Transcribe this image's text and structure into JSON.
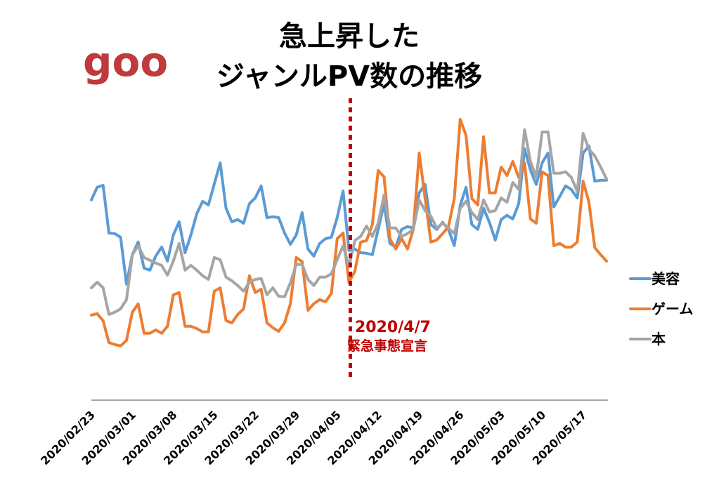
{
  "logo": {
    "text": "goo"
  },
  "chart_data": {
    "type": "line",
    "title": [
      "急上昇した",
      "ジャンルPV数の推移"
    ],
    "xlabel": "",
    "ylabel": "",
    "y_unit": "relative PV index (no axis shown)",
    "ylim": [
      0,
      110
    ],
    "grid": false,
    "legend_position": "right",
    "start_date": "2020/02/23",
    "tick_labels": [
      "2020/02/23",
      "2020/03/01",
      "2020/03/08",
      "2020/03/15",
      "2020/03/22",
      "2020/03/29",
      "2020/04/05",
      "2020/04/12",
      "2020/04/19",
      "2020/04/26",
      "2020/05/03",
      "2020/05/10",
      "2020/05/17"
    ],
    "tick_day_step": 7,
    "series": [
      {
        "name": "美容",
        "color": "#5b9bd5",
        "values": [
          71.3,
          75.8,
          76.5,
          59.5,
          59.3,
          58,
          41.3,
          51.8,
          56.3,
          47,
          46.3,
          51.3,
          54.5,
          49.5,
          58.8,
          63.5,
          52.5,
          58.8,
          66.3,
          70.8,
          69.5,
          77,
          84.5,
          68.3,
          63.5,
          64.3,
          63,
          70,
          72,
          76.3,
          65,
          65.3,
          65,
          59.5,
          55.5,
          58.8,
          66.8,
          53.8,
          51.3,
          55.8,
          57.5,
          58,
          65,
          74.5,
          53.3,
          53.8,
          52.5,
          52.3,
          51.8,
          60.8,
          70,
          55.8,
          54.5,
          60.8,
          61.8,
          61.3,
          73.8,
          76.8,
          62.5,
          60.8,
          63.3,
          60.8,
          55,
          69.3,
          75.8,
          62.5,
          60.8,
          68.3,
          63.3,
          57,
          64.3,
          65.8,
          64.5,
          70,
          89.5,
          82,
          76.8,
          84.5,
          88,
          68.8,
          72.5,
          76.3,
          75,
          72,
          88,
          90.5,
          78,
          78.3,
          78.3
        ]
      },
      {
        "name": "ゲーム",
        "color": "#ed7d31",
        "values": [
          30.3,
          30.8,
          28.3,
          20.5,
          19.8,
          19.3,
          21.3,
          31.3,
          34.3,
          23.8,
          23.8,
          25,
          23.8,
          26.3,
          37.5,
          38.3,
          26.3,
          26.3,
          25.5,
          24.3,
          24.3,
          38.8,
          40,
          28.3,
          27.5,
          30.5,
          32.5,
          44.3,
          38.3,
          39.5,
          27.5,
          25.8,
          24.5,
          27.5,
          34.3,
          50.8,
          49.3,
          32,
          34.3,
          35.8,
          35,
          38,
          57.5,
          59.5,
          42,
          45.8,
          56.3,
          56.8,
          62.5,
          81.8,
          79.5,
          57.5,
          53.8,
          57.5,
          53.8,
          60.8,
          88,
          72,
          56.3,
          57,
          59.3,
          61.8,
          71.8,
          100,
          94.3,
          71.8,
          69.5,
          93.8,
          73.8,
          73.8,
          83,
          80,
          85,
          79.3,
          84.5,
          64.5,
          63,
          81.3,
          80,
          55,
          55.8,
          54.5,
          54.5,
          56.3,
          78,
          70.5,
          54.3,
          51.8,
          49.5
        ]
      },
      {
        "name": "本",
        "color": "#a5a5a5",
        "values": [
          40,
          42,
          40,
          30.5,
          31.3,
          32.5,
          35.8,
          51.8,
          55,
          50.8,
          49.8,
          48.8,
          48,
          44.5,
          49.5,
          55.8,
          46.3,
          48,
          46.3,
          44.3,
          43,
          50.8,
          50,
          43.8,
          42.5,
          40.8,
          38.8,
          42,
          43,
          43.3,
          37.5,
          40,
          37,
          36.8,
          41.8,
          48.3,
          48.3,
          43,
          40.8,
          43.8,
          43.8,
          45,
          50,
          55,
          47.5,
          56.8,
          58.3,
          62,
          58.3,
          63,
          73,
          61.3,
          61.3,
          58.3,
          59.3,
          60.8,
          71.3,
          67.5,
          65.5,
          61.3,
          63,
          61.3,
          59.3,
          68.3,
          70.8,
          66.8,
          64.3,
          71.3,
          67,
          67.5,
          72,
          70.5,
          77.5,
          75,
          96.3,
          85,
          79.5,
          95.5,
          95.5,
          80.8,
          80.8,
          81.3,
          79.3,
          74.3,
          95,
          89.3,
          87,
          83,
          78.8
        ]
      }
    ],
    "annotation": {
      "date": "2020/04/07",
      "day_index": 44,
      "line1": "2020/4/7",
      "line2": "緊急事態宣言",
      "color": "#c00000"
    }
  }
}
